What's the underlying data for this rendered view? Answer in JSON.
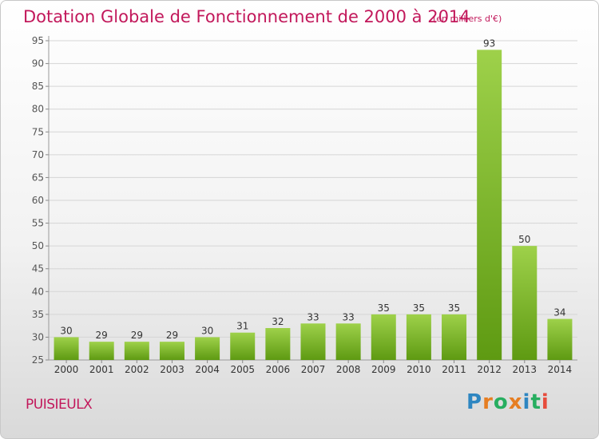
{
  "title": "Dotation Globale de Fonctionnement de 2000 à 2014",
  "unit_note": "(en milliers d'€)",
  "commune": "PUISIEULX",
  "logo": {
    "text": "Proxiti",
    "letters": [
      "P",
      "r",
      "o",
      "x",
      "i",
      "t",
      "i"
    ],
    "colors": [
      "#2e86c1",
      "#e67e22",
      "#27ae60",
      "#e67e22",
      "#2e86c1",
      "#27ae60",
      "#e74c3c"
    ]
  },
  "colors": {
    "accent": "#c2185b",
    "bar_top": "#9ed14a",
    "bar_bottom": "#5e9a12",
    "grid": "#d5d5d5"
  },
  "chart_data": {
    "type": "bar",
    "categories": [
      "2000",
      "2001",
      "2002",
      "2003",
      "2004",
      "2005",
      "2006",
      "2007",
      "2008",
      "2009",
      "2010",
      "2011",
      "2012",
      "2013",
      "2014"
    ],
    "values": [
      30,
      29,
      29,
      29,
      30,
      31,
      32,
      33,
      33,
      35,
      35,
      35,
      93,
      50,
      34
    ],
    "ylim": [
      25,
      95
    ],
    "yticks": [
      25,
      30,
      35,
      40,
      45,
      50,
      55,
      60,
      65,
      70,
      75,
      80,
      85,
      90,
      95
    ],
    "grid": true,
    "data_labels": true
  }
}
